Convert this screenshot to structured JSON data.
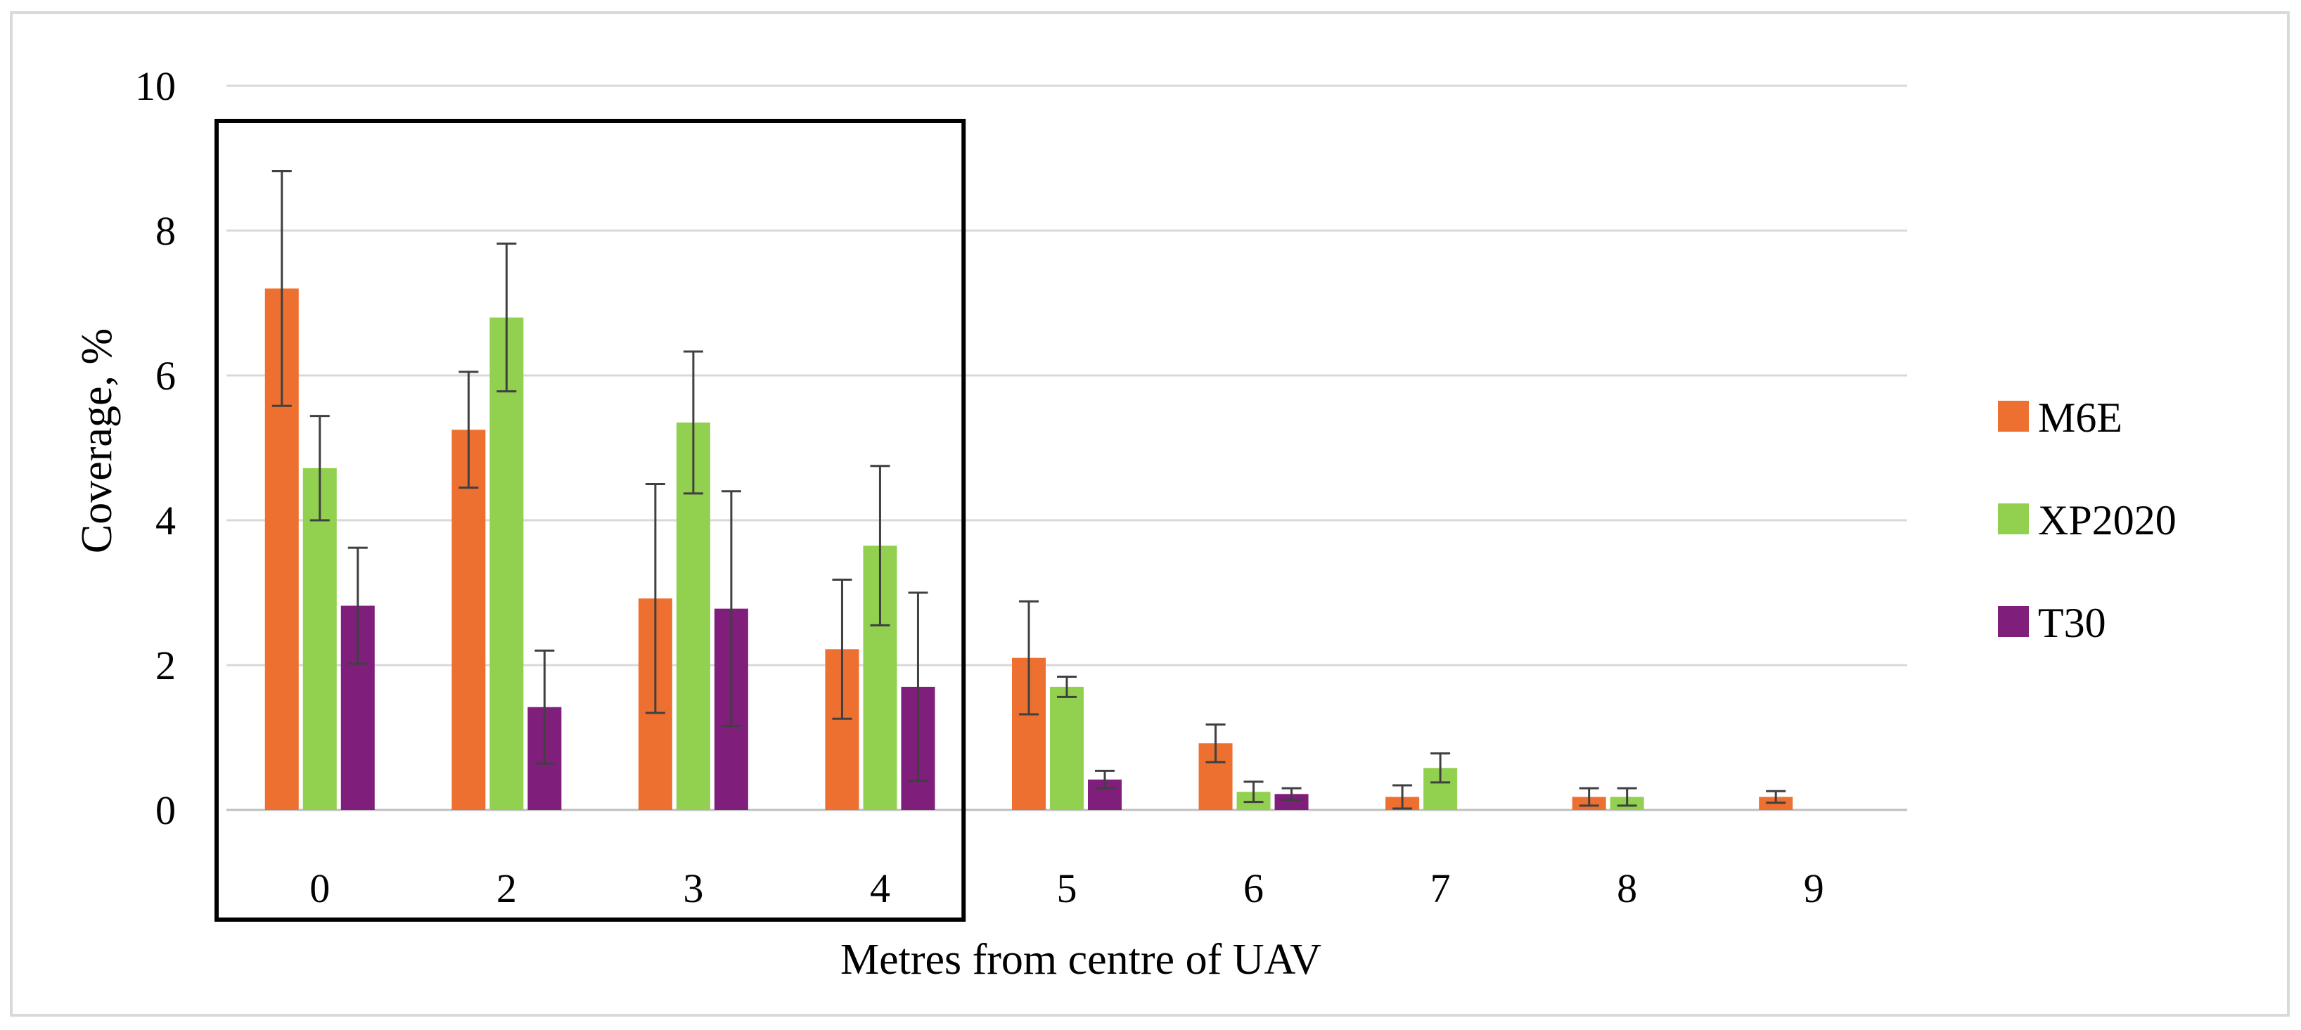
{
  "chart_data": {
    "type": "bar",
    "categories": [
      "0",
      "2",
      "3",
      "4",
      "5",
      "6",
      "7",
      "8",
      "9"
    ],
    "series": [
      {
        "name": "M6E",
        "color": "#ed7030",
        "values": [
          7.2,
          5.25,
          2.92,
          2.22,
          2.1,
          0.92,
          0.18,
          0.18,
          0.18
        ],
        "errors": [
          1.62,
          0.8,
          1.58,
          0.96,
          0.78,
          0.26,
          0.16,
          0.12,
          0.08
        ]
      },
      {
        "name": "XP2020",
        "color": "#92d050",
        "values": [
          4.72,
          6.8,
          5.35,
          3.65,
          1.7,
          0.25,
          0.58,
          0.18,
          null
        ],
        "errors": [
          0.72,
          1.02,
          0.98,
          1.1,
          0.14,
          0.14,
          0.2,
          0.12,
          null
        ]
      },
      {
        "name": "T30",
        "color": "#7f1f7b",
        "values": [
          2.82,
          1.42,
          2.78,
          1.7,
          0.42,
          0.22,
          null,
          null,
          null
        ],
        "errors": [
          0.8,
          0.78,
          1.62,
          1.3,
          0.12,
          0.08,
          null,
          null,
          null
        ]
      }
    ],
    "ylim": [
      0,
      10
    ],
    "yticks": [
      "0",
      "2",
      "4",
      "6",
      "8",
      "10"
    ],
    "xlabel": "Metres from centre of UAV",
    "ylabel": "Coverage, %",
    "grid": "horizontal",
    "legend_position": "right",
    "highlight_box_categories": [
      "0",
      "2",
      "3",
      "4"
    ]
  }
}
